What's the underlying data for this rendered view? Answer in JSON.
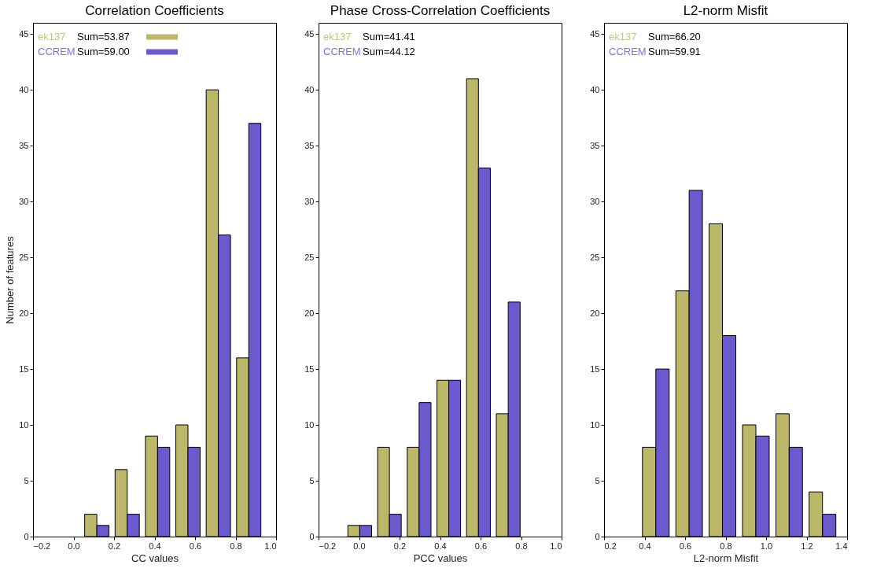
{
  "chart_data": [
    {
      "type": "histogram",
      "title": "Correlation Coefficients",
      "xlabel": "CC values",
      "ylabel": "Number of features",
      "bins": [
        0.04,
        0.19,
        0.34,
        0.49,
        0.64,
        0.79,
        0.94
      ],
      "series": [
        {
          "name": "ek137",
          "color": "#bdb76b",
          "values": [
            2,
            6,
            9,
            10,
            40,
            16
          ]
        },
        {
          "name": "CCREM",
          "color": "#6a5acd",
          "values": [
            1,
            2,
            8,
            8,
            27,
            37
          ]
        }
      ],
      "annotations": [
        "Sum=53.87",
        "Sum=59.00"
      ],
      "xlim": [
        -0.2,
        1.0
      ],
      "xticks": [
        {
          "value": -0.2,
          "label": "−0.2"
        },
        {
          "value": 0,
          "label": "0.0"
        },
        0.2,
        0.4,
        0.6,
        0.8,
        {
          "value": 1,
          "label": "1.0"
        }
      ],
      "ylim": [
        0,
        46
      ],
      "yticks": [
        0,
        5,
        10,
        15,
        20,
        25,
        30,
        35,
        40,
        45
      ],
      "legend": "top left",
      "grid": false
    },
    {
      "type": "histogram",
      "title": "Phase Cross-Correlation Coefficients",
      "xlabel": "PCC values",
      "bins": [
        -0.07,
        0.077,
        0.223,
        0.37,
        0.516,
        0.663,
        0.81
      ],
      "series": [
        {
          "name": "ek137",
          "color": "#bdb76b",
          "values": [
            1,
            8,
            8,
            14,
            41,
            11
          ]
        },
        {
          "name": "CCREM",
          "color": "#6a5acd",
          "values": [
            1,
            2,
            12,
            14,
            33,
            21
          ]
        }
      ],
      "annotations": [
        "Sum=41.41",
        "Sum=44.12"
      ],
      "xlim": [
        -0.2,
        1.0
      ],
      "xticks": [
        {
          "value": -0.2,
          "label": "−0.2"
        },
        {
          "value": 0,
          "label": "0.0"
        },
        0.2,
        0.4,
        0.6,
        0.8,
        {
          "value": 1,
          "label": "1.0"
        }
      ],
      "ylim": [
        0,
        46
      ],
      "yticks": [
        0,
        5,
        10,
        15,
        20,
        25,
        30,
        35,
        40,
        45
      ],
      "grid": false
    },
    {
      "type": "histogram",
      "title": "L2-norm Misfit",
      "xlabel": "L2-norm Misfit",
      "bins": [
        0.373,
        0.538,
        0.702,
        0.867,
        1.032,
        1.196,
        1.361
      ],
      "series": [
        {
          "name": "ek137",
          "color": "#bdb76b",
          "values": [
            8,
            22,
            28,
            10,
            11,
            4
          ]
        },
        {
          "name": "CCREM",
          "color": "#6a5acd",
          "values": [
            15,
            31,
            18,
            9,
            8,
            2
          ]
        }
      ],
      "annotations": [
        "Sum=66.20",
        "Sum=59.91"
      ],
      "xlim": [
        0.2,
        1.4
      ],
      "xticks": [
        0.2,
        0.4,
        0.6,
        0.8,
        {
          "value": 1,
          "label": "1.0"
        },
        1.2,
        1.4
      ],
      "ylim": [
        0,
        46
      ],
      "yticks": [
        0,
        5,
        10,
        15,
        20,
        25,
        30,
        35,
        40,
        45
      ],
      "grid": false
    }
  ]
}
